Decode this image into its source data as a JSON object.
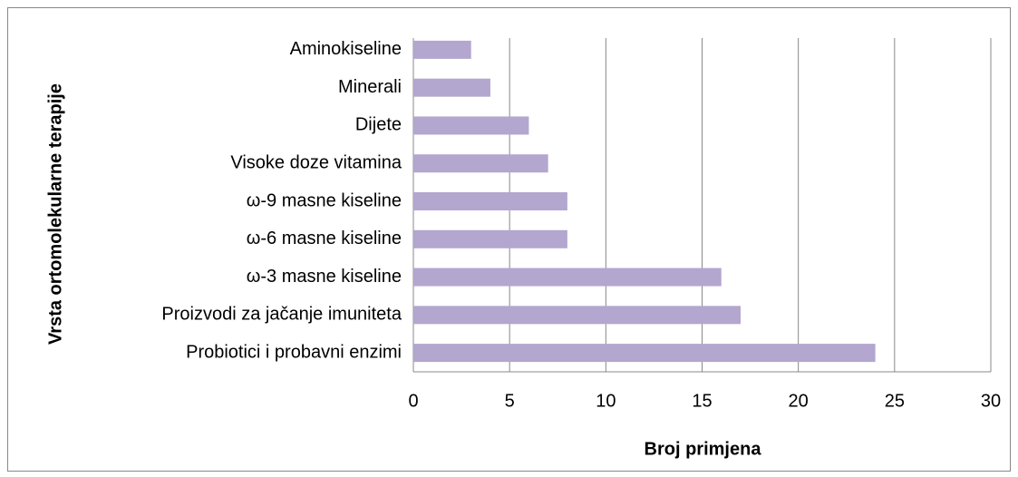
{
  "chart_data": {
    "type": "hbar",
    "xlabel": "Broj primjena",
    "ylabel": "Vrsta ortomolekularne terapije",
    "categories": [
      "Aminokiseline",
      "Minerali",
      "Dijete",
      "Visoke doze vitamina",
      "ω-9 masne kiseline",
      "ω-6 masne kiseline",
      "ω-3 masne kiseline",
      "Proizvodi za jačanje imuniteta",
      "Probiotici i probavni enzimi"
    ],
    "values": [
      3,
      4,
      6,
      7,
      8,
      8,
      16,
      17,
      24
    ],
    "color": "#b3a6cf",
    "xlim": [
      0,
      30
    ],
    "xticks": [
      0,
      5,
      10,
      15,
      20,
      25,
      30
    ],
    "grid": true
  }
}
